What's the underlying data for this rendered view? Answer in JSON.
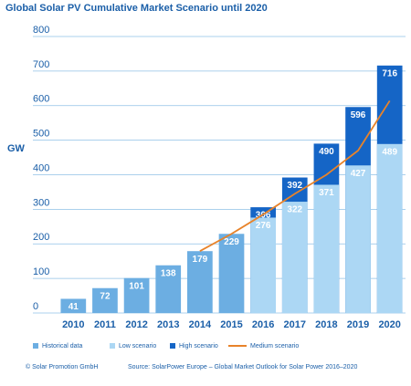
{
  "chart_data": {
    "type": "bar",
    "title": "Global Solar PV Cumulative Market Scenario until 2020",
    "y_label": "GW",
    "categories": [
      "2010",
      "2011",
      "2012",
      "2013",
      "2014",
      "2015",
      "2016",
      "2017",
      "2018",
      "2019",
      "2020"
    ],
    "series": [
      {
        "name": "Historical data",
        "color": "#6caee2",
        "values": [
          41,
          72,
          101,
          138,
          179,
          229,
          null,
          null,
          null,
          null,
          null
        ]
      },
      {
        "name": "Low scenario",
        "color": "#acd7f4",
        "values": [
          null,
          null,
          null,
          null,
          null,
          null,
          276,
          322,
          371,
          427,
          489
        ]
      },
      {
        "name": "High scenario",
        "color": "#1565c6",
        "values": [
          null,
          null,
          null,
          null,
          null,
          null,
          306,
          392,
          490,
          596,
          716
        ]
      },
      {
        "name": "Medium scenario",
        "type": "line",
        "color": "#e8832a",
        "values": [
          null,
          null,
          null,
          null,
          179,
          229,
          285,
          345,
          400,
          470,
          614
        ]
      }
    ],
    "ylim": [
      0,
      800
    ],
    "yticks": [
      0,
      100,
      200,
      300,
      400,
      500,
      600,
      700,
      800
    ],
    "grid": true,
    "footer": [
      "© Solar Promotion GmbH",
      "Source: SolarPower Europe – Global Market Outlook for Solar Power 2016–2020"
    ]
  }
}
